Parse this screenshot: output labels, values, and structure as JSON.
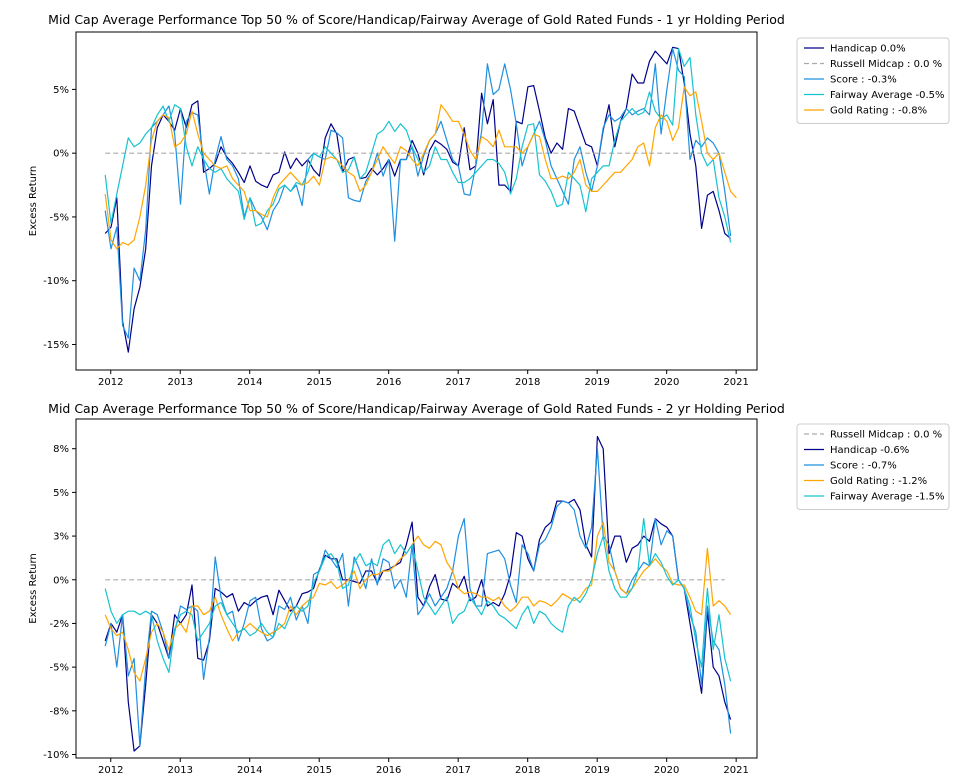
{
  "chart_data": [
    {
      "type": "line",
      "title": "Mid Cap Average Performance Top 50 % of Score/Handicap/Fairway Average of Gold Rated Funds - 1 yr Holding Period",
      "xlabel": "",
      "ylabel": "Excess Return",
      "xlim": [
        2011.5,
        2021.3
      ],
      "ylim": [
        -17,
        9.5
      ],
      "x_ticks": [
        2012,
        2013,
        2014,
        2015,
        2016,
        2017,
        2018,
        2019,
        2020,
        2021
      ],
      "x_tick_labels": [
        "2012",
        "2013",
        "2014",
        "2015",
        "2016",
        "2017",
        "2018",
        "2019",
        "2020",
        "2021"
      ],
      "y_ticks": [
        -15,
        -10,
        -5,
        0,
        5
      ],
      "y_tick_labels": [
        "-15%",
        "-10%",
        "-5%",
        "0%",
        "5%"
      ],
      "x_start": 2011.92,
      "x_step": 0.08333,
      "legend_position": "outside-right",
      "grid": false,
      "series": [
        {
          "name": "Handicap 0.0%",
          "color": "#00008b",
          "style": "solid",
          "values": [
            -6.3,
            -5.8,
            -3.5,
            -13.2,
            -15.6,
            -12.2,
            -10.5,
            -7.5,
            -1.0,
            2.0,
            3.0,
            2.5,
            1.8,
            3.5,
            2.0,
            3.8,
            4.1,
            -1.5,
            -1.2,
            -0.8,
            0.5,
            -0.3,
            -0.8,
            -1.5,
            -2.3,
            -1.0,
            -2.2,
            -2.5,
            -2.7,
            -1.7,
            -1.5,
            0.1,
            -1.2,
            -0.4,
            -1.0,
            -0.5,
            -1.3,
            -1.8,
            1.2,
            2.3,
            1.5,
            -1.5,
            -0.5,
            -0.3,
            -2.0,
            -1.9,
            -1.2,
            -1.7,
            -1.2,
            -0.5,
            -1.8,
            -0.5,
            -0.5,
            1.0,
            0.0,
            -1.7,
            0.2,
            1.0,
            0.7,
            0.3,
            -0.7,
            -1.0,
            2.0,
            -1.3,
            -1.0,
            4.7,
            2.3,
            4.2,
            -2.5,
            -2.5,
            -3.0,
            2.5,
            2.3,
            5.2,
            5.3,
            3.3,
            1.2,
            0.0,
            0.8,
            0.3,
            3.5,
            3.3,
            2.0,
            0.7,
            0.5,
            -1.0,
            1.8,
            3.8,
            0.5,
            2.5,
            3.5,
            6.2,
            5.5,
            5.5,
            7.2,
            8.0,
            7.5,
            7.0,
            8.3,
            8.2,
            5.5,
            1.5,
            -1.0,
            -5.9,
            -3.3,
            -3.0,
            -4.5,
            -6.3,
            -6.7
          ]
        },
        {
          "name": "Russell Midcap : 0.0 %",
          "color": "#aaaaaa",
          "style": "dashed",
          "values": [
            0,
            0
          ]
        },
        {
          "name": "Score : -0.3%",
          "color": "#1f8fe0",
          "style": "solid",
          "values": [
            -4.5,
            -7.5,
            -5.8,
            -13.5,
            -14.5,
            -9.0,
            -10.0,
            -6.0,
            2.0,
            2.5,
            3.0,
            3.7,
            1.5,
            -4.0,
            2.5,
            3.2,
            3.0,
            -0.5,
            -3.2,
            -0.5,
            1.3,
            -0.5,
            -1.0,
            -2.0,
            -5.0,
            -3.5,
            -4.5,
            -5.0,
            -6.0,
            -4.5,
            -3.8,
            -2.5,
            -3.0,
            -2.5,
            -4.1,
            -0.5,
            0.0,
            -0.3,
            -0.5,
            1.8,
            1.6,
            1.2,
            -3.5,
            -3.7,
            -3.8,
            -2.2,
            -1.5,
            0.0,
            -1.8,
            -0.5,
            -6.9,
            -0.5,
            -0.5,
            0.5,
            -1.8,
            -0.2,
            1.0,
            1.5,
            2.5,
            1.0,
            -0.5,
            -1.0,
            -3.2,
            -3.3,
            -1.0,
            1.7,
            7.0,
            4.6,
            5.0,
            7.0,
            5.0,
            2.3,
            -1.0,
            0.5,
            1.5,
            2.5,
            1.0,
            -1.0,
            -2.0,
            -3.0,
            -4.0,
            -0.5,
            0.5,
            -1.5,
            -3.0,
            -1.0,
            2.0,
            3.0,
            2.5,
            2.8,
            3.5,
            3.0,
            3.3,
            3.5,
            3.0,
            7.0,
            1.5,
            5.0,
            8.2,
            6.5,
            6.0,
            -0.5,
            1.0,
            0.5,
            1.2,
            0.8,
            0.0,
            -3.0,
            -6.5
          ]
        },
        {
          "name": "Fairway Average -0.5%",
          "color": "#17c3cf",
          "style": "solid",
          "values": [
            -1.7,
            -5.5,
            -3.2,
            -1.0,
            1.2,
            0.5,
            0.8,
            1.5,
            2.0,
            3.0,
            3.7,
            2.5,
            3.8,
            3.5,
            0.5,
            -1.0,
            0.5,
            -0.5,
            -1.2,
            -1.5,
            -1.2,
            -2.0,
            -2.5,
            -3.0,
            -5.2,
            -3.5,
            -5.7,
            -5.5,
            -4.5,
            -4.0,
            -2.8,
            -2.5,
            -3.0,
            -2.3,
            -2.5,
            -1.5,
            0.0,
            -0.3,
            0.5,
            0.0,
            -0.5,
            -1.5,
            -1.3,
            -0.3,
            -2.0,
            -1.5,
            0.0,
            1.5,
            1.8,
            2.5,
            1.7,
            2.3,
            1.8,
            0.5,
            -0.5,
            -1.5,
            -1.0,
            0.5,
            -0.5,
            -0.5,
            -1.5,
            -2.3,
            -2.3,
            -2.0,
            -1.5,
            -1.0,
            -0.5,
            -0.5,
            -0.8,
            -1.5,
            -3.2,
            -2.0,
            0.5,
            2.2,
            2.3,
            -1.7,
            -2.2,
            -3.0,
            -4.2,
            -4.0,
            -1.5,
            -2.0,
            -2.5,
            -4.6,
            -2.0,
            -1.5,
            -1.0,
            -1.0,
            1.0,
            2.5,
            3.0,
            3.5,
            3.0,
            3.2,
            4.8,
            3.3,
            2.7,
            3.0,
            2.2,
            8.2,
            6.8,
            7.5,
            3.0,
            0.0,
            -1.0,
            -0.5,
            -3.5,
            -5.0,
            -7.0
          ]
        },
        {
          "name": "Gold Rating : -0.8%",
          "color": "#ffa500",
          "style": "solid",
          "values": [
            -3.2,
            -6.8,
            -7.5,
            -7.0,
            -7.2,
            -6.8,
            -5.0,
            -2.5,
            1.0,
            2.5,
            3.0,
            2.8,
            0.5,
            0.8,
            1.5,
            3.3,
            1.5,
            0.0,
            -0.5,
            -1.0,
            -1.2,
            -1.0,
            -2.0,
            -2.5,
            -3.0,
            -4.5,
            -4.5,
            -4.8,
            -5.0,
            -3.5,
            -2.5,
            -2.0,
            -1.5,
            -2.0,
            -2.5,
            -2.3,
            -1.8,
            -2.5,
            -0.5,
            -0.3,
            -0.5,
            -1.0,
            -1.5,
            -1.8,
            -3.0,
            -2.5,
            -1.5,
            -0.5,
            0.5,
            -0.2,
            -0.8,
            0.5,
            0.2,
            -0.5,
            -1.0,
            0.0,
            1.0,
            1.5,
            3.8,
            3.2,
            2.5,
            2.5,
            1.5,
            0.2,
            -0.5,
            1.3,
            1.0,
            0.5,
            1.8,
            0.5,
            0.5,
            0.5,
            0.0,
            0.5,
            1.5,
            1.3,
            -0.5,
            -2.0,
            -2.0,
            -1.8,
            -2.0,
            -1.5,
            -0.5,
            -2.5,
            -3.0,
            -3.0,
            -2.5,
            -2.0,
            -1.5,
            -1.5,
            -1.0,
            -0.5,
            0.5,
            0.8,
            -1.0,
            2.0,
            3.0,
            2.5,
            1.0,
            2.0,
            5.2,
            4.5,
            4.8,
            2.5,
            0.0,
            -0.5,
            0.0,
            -1.5,
            -3.0,
            -3.5
          ]
        }
      ]
    },
    {
      "type": "line",
      "title": "Mid Cap Average Performance Top 50 % of Score/Handicap/Fairway Average of Gold Rated Funds - 2 yr Holding Period",
      "xlabel": "",
      "ylabel": "Excess Return",
      "xlim": [
        2011.5,
        2021.3
      ],
      "ylim": [
        -10.2,
        9.2
      ],
      "x_ticks": [
        2012,
        2013,
        2014,
        2015,
        2016,
        2017,
        2018,
        2019,
        2020,
        2021
      ],
      "x_tick_labels": [
        "2012",
        "2013",
        "2014",
        "2015",
        "2016",
        "2017",
        "2018",
        "2019",
        "2020",
        "2021"
      ],
      "y_ticks": [
        -10,
        -7.5,
        -5,
        -2.5,
        0,
        2.5,
        5,
        7.5
      ],
      "y_tick_labels": [
        "-10%",
        "-8%",
        "-5%",
        "-2%",
        "0%",
        "3%",
        "5%",
        "8%"
      ],
      "x_start": 2011.92,
      "x_step": 0.08333,
      "legend_position": "outside-right",
      "grid": false,
      "series": [
        {
          "name": "Russell Midcap : 0.0 %",
          "color": "#aaaaaa",
          "style": "dashed",
          "values": [
            0,
            0
          ]
        },
        {
          "name": "Handicap -0.6%",
          "color": "#00008b",
          "style": "solid",
          "values": [
            -3.5,
            -2.5,
            -3.0,
            -2.0,
            -7.0,
            -9.8,
            -9.5,
            -6.0,
            -2.0,
            -2.5,
            -3.5,
            -4.5,
            -2.0,
            -2.5,
            -2.0,
            -0.3,
            -4.5,
            -4.6,
            -3.5,
            -0.5,
            -0.7,
            -1.0,
            -0.8,
            -1.8,
            -1.3,
            -1.5,
            -1.2,
            -1.0,
            -0.9,
            -2.0,
            -0.6,
            -1.2,
            -1.8,
            -1.5,
            -0.8,
            -0.7,
            -0.5,
            0.6,
            1.4,
            1.2,
            1.2,
            0.0,
            0.0,
            -0.1,
            -0.2,
            0.5,
            0.5,
            -0.2,
            0.5,
            0.6,
            0.8,
            1.0,
            2.0,
            3.3,
            -1.0,
            -1.5,
            -0.4,
            0.3,
            -1.1,
            -1.2,
            -0.2,
            -0.5,
            0.2,
            -1.2,
            -1.0,
            0.0,
            -1.5,
            -1.3,
            -1.5,
            -0.8,
            0.3,
            2.7,
            2.5,
            1.2,
            0.5,
            2.3,
            3.0,
            3.3,
            4.5,
            4.5,
            4.4,
            4.6,
            4.0,
            2.0,
            1.3,
            8.2,
            7.5,
            1.5,
            2.5,
            2.5,
            1.0,
            1.8,
            2.0,
            2.5,
            2.2,
            3.5,
            3.2,
            3.0,
            2.5,
            0.0,
            -0.5,
            -2.5,
            -4.5,
            -6.5,
            -1.8,
            -5.0,
            -5.5,
            -7.0,
            -8.0
          ]
        },
        {
          "name": "Score : -0.7%",
          "color": "#1f8fe0",
          "style": "solid",
          "values": [
            -3.8,
            -2.5,
            -5.0,
            -2.0,
            -5.5,
            -4.5,
            -9.5,
            -5.0,
            -1.8,
            -2.0,
            -3.0,
            -4.5,
            -3.0,
            -1.5,
            -1.7,
            -1.5,
            -1.8,
            -5.7,
            -3.3,
            1.3,
            -1.0,
            -2.0,
            -1.8,
            -3.5,
            -2.5,
            -1.2,
            -1.0,
            -2.8,
            -3.5,
            -3.3,
            -1.5,
            -1.7,
            -1.0,
            -2.3,
            -1.5,
            -2.5,
            0.3,
            0.5,
            1.7,
            1.2,
            0.7,
            1.5,
            -1.5,
            1.3,
            0.5,
            -0.5,
            1.2,
            -0.3,
            1.2,
            1.0,
            -0.5,
            0.0,
            -1.0,
            2.0,
            -2.0,
            -1.5,
            -0.8,
            -1.5,
            -1.0,
            -0.5,
            0.5,
            2.5,
            3.5,
            -0.5,
            -1.5,
            -1.5,
            1.5,
            1.6,
            1.7,
            1.2,
            -0.3,
            -1.3,
            2.0,
            1.5,
            0.5,
            2.0,
            2.3,
            3.0,
            4.2,
            4.5,
            4.4,
            4.0,
            2.5,
            1.8,
            3.0,
            7.5,
            2.5,
            2.0,
            0.5,
            -0.5,
            -0.8,
            0.0,
            0.5,
            1.0,
            0.8,
            3.5,
            2.0,
            2.8,
            2.5,
            0.0,
            -0.5,
            -2.0,
            -3.0,
            -6.0,
            -1.5,
            -3.5,
            -4.0,
            -6.0,
            -8.8
          ]
        },
        {
          "name": "Gold Rating : -1.2%",
          "color": "#ffa500",
          "style": "solid",
          "values": [
            -2.0,
            -2.8,
            -3.2,
            -3.0,
            -4.0,
            -5.3,
            -5.8,
            -4.5,
            -3.0,
            -2.5,
            -3.0,
            -4.0,
            -2.8,
            -2.5,
            -3.0,
            -1.5,
            -1.5,
            -2.0,
            -1.8,
            -1.0,
            -2.0,
            -2.8,
            -3.5,
            -3.0,
            -2.8,
            -2.5,
            -2.8,
            -3.0,
            -3.2,
            -3.0,
            -2.8,
            -2.5,
            -1.5,
            -2.0,
            -1.5,
            -1.2,
            -1.0,
            -0.2,
            -0.3,
            -0.1,
            -0.5,
            -0.3,
            0.0,
            0.5,
            -0.5,
            0.0,
            0.3,
            0.3,
            0.5,
            0.5,
            0.8,
            1.2,
            1.5,
            2.0,
            2.5,
            2.0,
            1.8,
            2.2,
            2.0,
            1.0,
            0.5,
            -0.5,
            -0.8,
            -0.7,
            -0.8,
            -1.0,
            -1.0,
            -1.2,
            -1.0,
            -1.5,
            -1.8,
            -1.5,
            -1.0,
            -1.0,
            -1.5,
            -1.2,
            -1.3,
            -1.5,
            -1.2,
            -0.8,
            -1.0,
            -1.2,
            -1.0,
            -0.5,
            -0.3,
            2.5,
            3.3,
            1.0,
            0.5,
            -0.5,
            -0.8,
            -0.5,
            0.0,
            0.5,
            0.8,
            1.2,
            0.8,
            0.5,
            -0.2,
            -0.3,
            -0.3,
            -1.0,
            -1.8,
            -2.0,
            1.8,
            -1.5,
            -1.2,
            -1.5,
            -2.0
          ]
        },
        {
          "name": "Fairway Average -1.5%",
          "color": "#17c3cf",
          "style": "solid",
          "values": [
            -0.5,
            -1.8,
            -2.5,
            -2.0,
            -1.8,
            -1.8,
            -2.0,
            -1.8,
            -2.0,
            -3.5,
            -4.5,
            -5.3,
            -2.8,
            -2.0,
            -1.8,
            -2.0,
            -3.5,
            -3.0,
            -2.5,
            -1.5,
            -1.3,
            -2.0,
            -2.5,
            -3.0,
            -2.8,
            -3.2,
            -3.0,
            -2.5,
            -3.0,
            -3.3,
            -2.5,
            -2.8,
            -2.0,
            -1.5,
            -1.8,
            -1.5,
            -0.2,
            0.5,
            1.3,
            1.5,
            1.0,
            -0.5,
            -0.3,
            1.0,
            1.5,
            0.8,
            1.0,
            0.8,
            2.0,
            2.3,
            1.5,
            2.0,
            1.5,
            2.0,
            0.5,
            -1.0,
            -1.5,
            -2.0,
            -1.5,
            -1.0,
            -2.5,
            -2.0,
            -1.8,
            -1.0,
            -1.5,
            -2.0,
            -1.2,
            -1.5,
            -2.0,
            -2.2,
            -2.5,
            -2.8,
            -2.0,
            -1.5,
            -2.5,
            -1.8,
            -2.0,
            -2.5,
            -2.8,
            -3.0,
            -1.5,
            -1.0,
            -1.3,
            -0.8,
            0.0,
            1.5,
            2.5,
            0.5,
            -0.5,
            -1.0,
            -1.0,
            -0.5,
            0.5,
            3.5,
            0.8,
            1.5,
            1.0,
            0.2,
            -0.3,
            0.0,
            -0.5,
            -1.5,
            -3.5,
            -5.0,
            -0.5,
            -4.0,
            -2.0,
            -4.5,
            -5.8
          ]
        }
      ]
    }
  ]
}
